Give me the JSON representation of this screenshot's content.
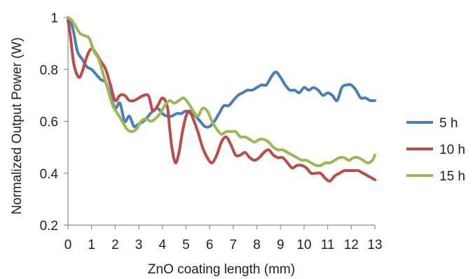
{
  "chart_data": {
    "type": "line",
    "title": "",
    "xlabel": "ZnO coating length  (mm)",
    "ylabel": "Normalized Output Power (W)",
    "xlim": [
      0,
      13
    ],
    "ylim": [
      0.2,
      1
    ],
    "x_ticks": [
      "0",
      "1",
      "2",
      "3",
      "4",
      "5",
      "6",
      "7",
      "8",
      "9",
      "10",
      "11",
      "12",
      "13"
    ],
    "y_ticks": [
      "0.2",
      "0.4",
      "0.6",
      "0.8",
      "1"
    ],
    "grid": false,
    "legend_position": "right",
    "series": [
      {
        "name": "5 h",
        "color": "#4a7ebb",
        "points": [
          [
            0,
            1.0
          ],
          [
            0.2,
            0.96
          ],
          [
            0.4,
            0.87
          ],
          [
            0.6,
            0.84
          ],
          [
            0.8,
            0.81
          ],
          [
            1.0,
            0.8
          ],
          [
            1.2,
            0.78
          ],
          [
            1.4,
            0.76
          ],
          [
            1.6,
            0.75
          ],
          [
            1.8,
            0.7
          ],
          [
            2.0,
            0.65
          ],
          [
            2.2,
            0.67
          ],
          [
            2.4,
            0.6
          ],
          [
            2.6,
            0.62
          ],
          [
            2.8,
            0.58
          ],
          [
            3.0,
            0.59
          ],
          [
            3.2,
            0.6
          ],
          [
            3.4,
            0.62
          ],
          [
            3.6,
            0.64
          ],
          [
            3.8,
            0.65
          ],
          [
            4.0,
            0.63
          ],
          [
            4.2,
            0.62
          ],
          [
            4.4,
            0.62
          ],
          [
            4.6,
            0.63
          ],
          [
            4.8,
            0.63
          ],
          [
            5.0,
            0.64
          ],
          [
            5.2,
            0.63
          ],
          [
            5.4,
            0.62
          ],
          [
            5.6,
            0.6
          ],
          [
            5.8,
            0.58
          ],
          [
            6.0,
            0.58
          ],
          [
            6.2,
            0.6
          ],
          [
            6.4,
            0.63
          ],
          [
            6.6,
            0.66
          ],
          [
            6.8,
            0.66
          ],
          [
            7.0,
            0.68
          ],
          [
            7.2,
            0.7
          ],
          [
            7.4,
            0.71
          ],
          [
            7.6,
            0.72
          ],
          [
            7.8,
            0.72
          ],
          [
            8.0,
            0.73
          ],
          [
            8.2,
            0.74
          ],
          [
            8.4,
            0.74
          ],
          [
            8.6,
            0.77
          ],
          [
            8.8,
            0.79
          ],
          [
            9.0,
            0.77
          ],
          [
            9.2,
            0.74
          ],
          [
            9.4,
            0.72
          ],
          [
            9.6,
            0.72
          ],
          [
            9.8,
            0.71
          ],
          [
            10.0,
            0.73
          ],
          [
            10.2,
            0.72
          ],
          [
            10.4,
            0.73
          ],
          [
            10.6,
            0.72
          ],
          [
            10.8,
            0.7
          ],
          [
            11.0,
            0.71
          ],
          [
            11.2,
            0.7
          ],
          [
            11.4,
            0.68
          ],
          [
            11.6,
            0.73
          ],
          [
            11.8,
            0.74
          ],
          [
            12.0,
            0.74
          ],
          [
            12.2,
            0.72
          ],
          [
            12.4,
            0.69
          ],
          [
            12.6,
            0.69
          ],
          [
            12.8,
            0.68
          ],
          [
            13.0,
            0.68
          ]
        ]
      },
      {
        "name": "10 h",
        "color": "#be4b48",
        "points": [
          [
            0,
            0.99
          ],
          [
            0.1,
            0.93
          ],
          [
            0.25,
            0.82
          ],
          [
            0.45,
            0.77
          ],
          [
            0.6,
            0.79
          ],
          [
            0.8,
            0.85
          ],
          [
            1.0,
            0.88
          ],
          [
            1.2,
            0.86
          ],
          [
            1.4,
            0.83
          ],
          [
            1.6,
            0.8
          ],
          [
            1.8,
            0.74
          ],
          [
            2.0,
            0.68
          ],
          [
            2.2,
            0.7
          ],
          [
            2.4,
            0.7
          ],
          [
            2.6,
            0.68
          ],
          [
            2.8,
            0.68
          ],
          [
            3.0,
            0.69
          ],
          [
            3.2,
            0.7
          ],
          [
            3.4,
            0.7
          ],
          [
            3.5,
            0.67
          ],
          [
            3.6,
            0.64
          ],
          [
            3.8,
            0.66
          ],
          [
            4.0,
            0.69
          ],
          [
            4.2,
            0.66
          ],
          [
            4.3,
            0.58
          ],
          [
            4.4,
            0.5
          ],
          [
            4.55,
            0.44
          ],
          [
            4.7,
            0.48
          ],
          [
            4.85,
            0.56
          ],
          [
            5.0,
            0.62
          ],
          [
            5.15,
            0.64
          ],
          [
            5.3,
            0.61
          ],
          [
            5.5,
            0.56
          ],
          [
            5.7,
            0.5
          ],
          [
            5.9,
            0.46
          ],
          [
            6.1,
            0.44
          ],
          [
            6.3,
            0.47
          ],
          [
            6.5,
            0.52
          ],
          [
            6.7,
            0.54
          ],
          [
            6.9,
            0.51
          ],
          [
            7.1,
            0.47
          ],
          [
            7.3,
            0.47
          ],
          [
            7.5,
            0.48
          ],
          [
            7.7,
            0.46
          ],
          [
            7.9,
            0.45
          ],
          [
            8.1,
            0.46
          ],
          [
            8.3,
            0.48
          ],
          [
            8.5,
            0.49
          ],
          [
            8.7,
            0.47
          ],
          [
            8.9,
            0.46
          ],
          [
            9.1,
            0.46
          ],
          [
            9.3,
            0.44
          ],
          [
            9.5,
            0.42
          ],
          [
            9.7,
            0.43
          ],
          [
            9.9,
            0.43
          ],
          [
            10.1,
            0.42
          ],
          [
            10.3,
            0.4
          ],
          [
            10.5,
            0.4
          ],
          [
            10.7,
            0.4
          ],
          [
            10.9,
            0.38
          ],
          [
            11.1,
            0.37
          ],
          [
            11.3,
            0.39
          ],
          [
            11.5,
            0.4
          ],
          [
            11.7,
            0.41
          ],
          [
            11.9,
            0.41
          ],
          [
            12.1,
            0.41
          ],
          [
            12.3,
            0.41
          ],
          [
            12.5,
            0.4
          ],
          [
            12.7,
            0.39
          ],
          [
            12.9,
            0.38
          ],
          [
            13.0,
            0.375
          ]
        ]
      },
      {
        "name": "15 h",
        "color": "#98b954",
        "points": [
          [
            0,
            1.0
          ],
          [
            0.15,
            0.99
          ],
          [
            0.3,
            0.97
          ],
          [
            0.5,
            0.94
          ],
          [
            0.7,
            0.93
          ],
          [
            0.9,
            0.92
          ],
          [
            1.1,
            0.87
          ],
          [
            1.3,
            0.84
          ],
          [
            1.5,
            0.78
          ],
          [
            1.7,
            0.72
          ],
          [
            1.9,
            0.66
          ],
          [
            2.1,
            0.63
          ],
          [
            2.3,
            0.6
          ],
          [
            2.5,
            0.57
          ],
          [
            2.7,
            0.56
          ],
          [
            2.9,
            0.57
          ],
          [
            3.1,
            0.6
          ],
          [
            3.3,
            0.61
          ],
          [
            3.5,
            0.6
          ],
          [
            3.7,
            0.61
          ],
          [
            3.9,
            0.63
          ],
          [
            4.1,
            0.66
          ],
          [
            4.3,
            0.68
          ],
          [
            4.5,
            0.67
          ],
          [
            4.7,
            0.68
          ],
          [
            4.9,
            0.69
          ],
          [
            5.1,
            0.67
          ],
          [
            5.3,
            0.64
          ],
          [
            5.5,
            0.62
          ],
          [
            5.7,
            0.65
          ],
          [
            5.9,
            0.64
          ],
          [
            6.1,
            0.6
          ],
          [
            6.3,
            0.57
          ],
          [
            6.5,
            0.55
          ],
          [
            6.7,
            0.56
          ],
          [
            6.9,
            0.56
          ],
          [
            7.1,
            0.56
          ],
          [
            7.3,
            0.54
          ],
          [
            7.5,
            0.54
          ],
          [
            7.7,
            0.53
          ],
          [
            7.9,
            0.52
          ],
          [
            8.1,
            0.53
          ],
          [
            8.3,
            0.53
          ],
          [
            8.5,
            0.52
          ],
          [
            8.7,
            0.5
          ],
          [
            8.9,
            0.49
          ],
          [
            9.1,
            0.49
          ],
          [
            9.3,
            0.48
          ],
          [
            9.5,
            0.47
          ],
          [
            9.7,
            0.46
          ],
          [
            9.9,
            0.45
          ],
          [
            10.1,
            0.45
          ],
          [
            10.3,
            0.44
          ],
          [
            10.5,
            0.43
          ],
          [
            10.7,
            0.43
          ],
          [
            10.9,
            0.44
          ],
          [
            11.1,
            0.44
          ],
          [
            11.3,
            0.45
          ],
          [
            11.5,
            0.46
          ],
          [
            11.7,
            0.46
          ],
          [
            11.9,
            0.45
          ],
          [
            12.1,
            0.46
          ],
          [
            12.3,
            0.46
          ],
          [
            12.5,
            0.45
          ],
          [
            12.7,
            0.44
          ],
          [
            12.9,
            0.45
          ],
          [
            13.0,
            0.47
          ]
        ]
      }
    ]
  }
}
